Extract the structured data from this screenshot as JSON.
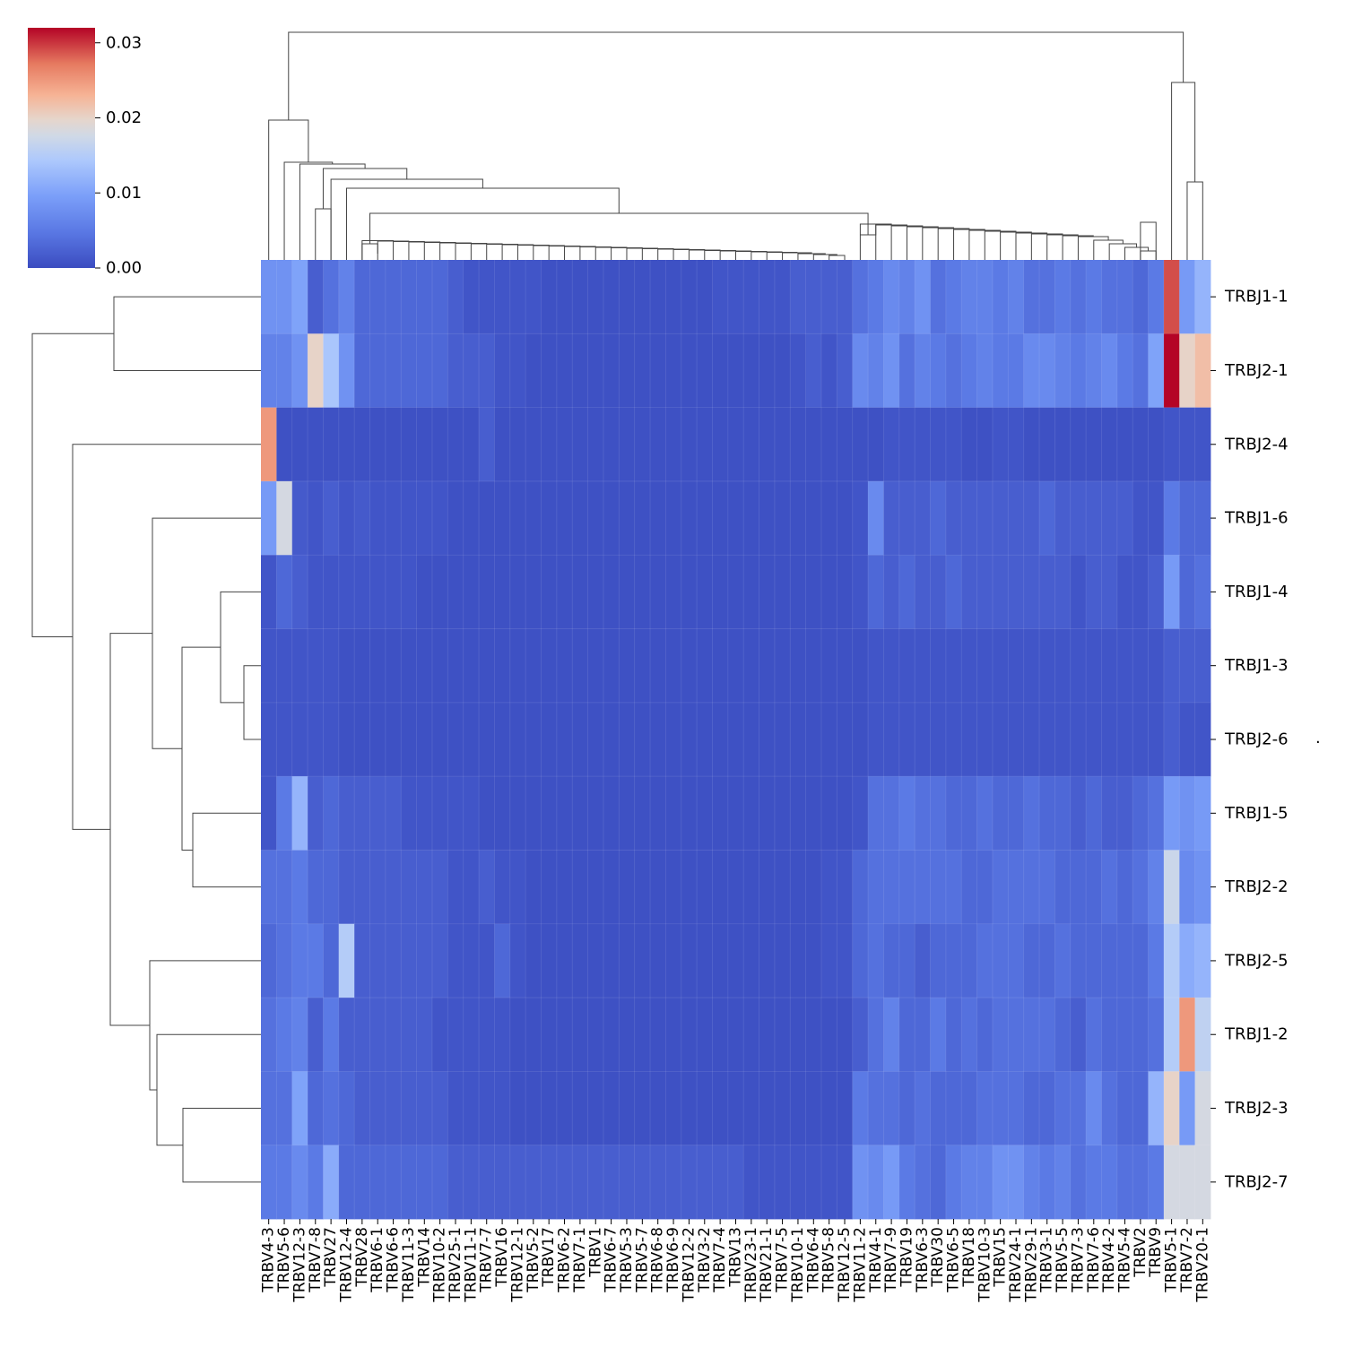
{
  "chart_data": {
    "type": "heatmap",
    "title": "",
    "xlabel": "",
    "ylabel": "",
    "colormap": "coolwarm",
    "colors": {
      "low": "#3b4cc0",
      "mid": "#dddddd",
      "high": "#b40426"
    },
    "colorbar": {
      "min": 0.0,
      "max": 0.032,
      "ticks": [
        0.0,
        0.01,
        0.02,
        0.03
      ],
      "tick_labels": [
        "0.00",
        "0.01",
        "0.02",
        "0.03"
      ]
    },
    "row_label_extra": ".",
    "columns": [
      "TRBV4-3",
      "TRBV5-6",
      "TRBV12-3",
      "TRBV7-8",
      "TRBV27",
      "TRBV12-4",
      "TRBV28",
      "TRBV6-1",
      "TRBV6-6",
      "TRBV11-3",
      "TRBV14",
      "TRBV10-2",
      "TRBV25-1",
      "TRBV11-1",
      "TRBV7-7",
      "TRBV16",
      "TRBV12-1",
      "TRBV5-2",
      "TRBV17",
      "TRBV6-2",
      "TRBV7-1",
      "TRBV1",
      "TRBV6-7",
      "TRBV5-3",
      "TRBV5-7",
      "TRBV6-8",
      "TRBV6-9",
      "TRBV12-2",
      "TRBV3-2",
      "TRBV7-4",
      "TRBV13",
      "TRBV23-1",
      "TRBV21-1",
      "TRBV7-5",
      "TRBV10-1",
      "TRBV6-4",
      "TRBV5-8",
      "TRBV12-5",
      "TRBV11-2",
      "TRBV4-1",
      "TRBV7-9",
      "TRBV19",
      "TRBV6-3",
      "TRBV30",
      "TRBV6-5",
      "TRBV18",
      "TRBV10-3",
      "TRBV15",
      "TRBV24-1",
      "TRBV29-1",
      "TRBV3-1",
      "TRBV5-5",
      "TRBV7-3",
      "TRBV7-6",
      "TRBV4-2",
      "TRBV5-4",
      "TRBV2",
      "TRBV9",
      "TRBV5-1",
      "TRBV7-2",
      "TRBV20-1"
    ],
    "rows": [
      "TRBJ1-1",
      "TRBJ2-1",
      "TRBJ2-4",
      "TRBJ1-6",
      "TRBJ1-4",
      "TRBJ1-3",
      "TRBJ2-6",
      "TRBJ1-5",
      "TRBJ2-2",
      "TRBJ2-5",
      "TRBJ1-2",
      "TRBJ2-3",
      "TRBJ2-7"
    ],
    "values": [
      [
        0.008,
        0.008,
        0.01,
        0.002,
        0.004,
        0.006,
        0.003,
        0.003,
        0.003,
        0.003,
        0.003,
        0.003,
        0.002,
        0.001,
        0.001,
        0.001,
        0.001,
        0.001,
        0.0005,
        0.0005,
        0.0005,
        0.0005,
        0.0005,
        0.0005,
        0.0005,
        0.0005,
        0.0005,
        0.0005,
        0.0005,
        0.001,
        0.001,
        0.001,
        0.001,
        0.001,
        0.002,
        0.002,
        0.002,
        0.002,
        0.004,
        0.005,
        0.007,
        0.006,
        0.008,
        0.004,
        0.005,
        0.006,
        0.006,
        0.005,
        0.006,
        0.004,
        0.004,
        0.005,
        0.004,
        0.005,
        0.004,
        0.004,
        0.003,
        0.005,
        0.029,
        0.009,
        0.012
      ],
      [
        0.006,
        0.006,
        0.008,
        0.02,
        0.014,
        0.008,
        0.003,
        0.003,
        0.003,
        0.003,
        0.003,
        0.003,
        0.002,
        0.002,
        0.002,
        0.001,
        0.001,
        0.0005,
        0.0005,
        0.0005,
        0.0005,
        0.0005,
        0.0005,
        0.0005,
        0.0005,
        0.0005,
        0.0005,
        0.0005,
        0.0005,
        0.0005,
        0.0005,
        0.0005,
        0.0005,
        0.0005,
        0.001,
        0.002,
        0.001,
        0.002,
        0.007,
        0.006,
        0.008,
        0.004,
        0.006,
        0.005,
        0.004,
        0.005,
        0.006,
        0.005,
        0.005,
        0.007,
        0.007,
        0.006,
        0.005,
        0.006,
        0.007,
        0.005,
        0.004,
        0.01,
        0.032,
        0.02,
        0.022
      ],
      [
        0.025,
        0.0005,
        0.0005,
        0.0005,
        0.0005,
        0.0005,
        0.0005,
        0.0005,
        0.0005,
        0.0005,
        0.0005,
        0.0005,
        0.0005,
        0.0005,
        0.002,
        0.0005,
        0.0005,
        0.0005,
        0.0005,
        0.0005,
        0.0005,
        0.0005,
        0.0005,
        0.0005,
        0.0005,
        0.0005,
        0.0005,
        0.0005,
        0.0005,
        0.0005,
        0.0005,
        0.0005,
        0.0005,
        0.0005,
        0.0005,
        0.0005,
        0.0005,
        0.0005,
        0.0005,
        0.0005,
        0.001,
        0.001,
        0.001,
        0.001,
        0.001,
        0.0005,
        0.0005,
        0.001,
        0.001,
        0.0005,
        0.0005,
        0.0005,
        0.0005,
        0.0005,
        0.0005,
        0.0005,
        0.0005,
        0.0005,
        0.001,
        0.001,
        0.001
      ],
      [
        0.009,
        0.018,
        0.0015,
        0.001,
        0.002,
        0.001,
        0.0015,
        0.001,
        0.001,
        0.001,
        0.001,
        0.001,
        0.0005,
        0.0005,
        0.0005,
        0.0005,
        0.0005,
        0.0005,
        0.0005,
        0.0005,
        0.0005,
        0.0005,
        0.0005,
        0.0005,
        0.0005,
        0.0005,
        0.0005,
        0.0005,
        0.0005,
        0.0005,
        0.0005,
        0.0005,
        0.0005,
        0.0005,
        0.0005,
        0.0005,
        0.0005,
        0.0005,
        0.001,
        0.007,
        0.002,
        0.002,
        0.002,
        0.003,
        0.002,
        0.002,
        0.002,
        0.002,
        0.002,
        0.002,
        0.003,
        0.002,
        0.002,
        0.002,
        0.002,
        0.002,
        0.001,
        0.001,
        0.005,
        0.003,
        0.003
      ],
      [
        0.001,
        0.003,
        0.002,
        0.001,
        0.001,
        0.001,
        0.001,
        0.001,
        0.001,
        0.001,
        0.0005,
        0.0005,
        0.0005,
        0.0005,
        0.0005,
        0.0005,
        0.0005,
        0.0005,
        0.0005,
        0.0005,
        0.0005,
        0.0005,
        0.0005,
        0.0005,
        0.0005,
        0.0005,
        0.0005,
        0.0005,
        0.0005,
        0.0005,
        0.0005,
        0.0005,
        0.0005,
        0.0005,
        0.0005,
        0.0005,
        0.0005,
        0.0005,
        0.001,
        0.003,
        0.002,
        0.003,
        0.002,
        0.002,
        0.003,
        0.002,
        0.002,
        0.002,
        0.002,
        0.002,
        0.002,
        0.002,
        0.001,
        0.002,
        0.002,
        0.001,
        0.001,
        0.002,
        0.009,
        0.003,
        0.004
      ],
      [
        0.001,
        0.001,
        0.001,
        0.001,
        0.001,
        0.0005,
        0.0005,
        0.0005,
        0.0005,
        0.0005,
        0.0005,
        0.0005,
        0.0005,
        0.0005,
        0.0005,
        0.0005,
        0.0005,
        0.0005,
        0.0005,
        0.0005,
        0.0005,
        0.0005,
        0.0005,
        0.0005,
        0.0005,
        0.0005,
        0.0005,
        0.0005,
        0.0005,
        0.0005,
        0.0005,
        0.0005,
        0.0005,
        0.0005,
        0.0005,
        0.0005,
        0.0005,
        0.0005,
        0.0005,
        0.001,
        0.001,
        0.001,
        0.001,
        0.001,
        0.001,
        0.001,
        0.001,
        0.001,
        0.001,
        0.001,
        0.001,
        0.001,
        0.001,
        0.001,
        0.001,
        0.001,
        0.001,
        0.001,
        0.002,
        0.002,
        0.002
      ],
      [
        0.001,
        0.001,
        0.001,
        0.001,
        0.001,
        0.0005,
        0.0005,
        0.0005,
        0.0005,
        0.0005,
        0.0005,
        0.0005,
        0.0005,
        0.0005,
        0.0005,
        0.0005,
        0.0005,
        0.0005,
        0.0005,
        0.0005,
        0.0005,
        0.0005,
        0.0005,
        0.0005,
        0.0005,
        0.0005,
        0.0005,
        0.0005,
        0.0005,
        0.0005,
        0.0005,
        0.0005,
        0.0005,
        0.0005,
        0.0005,
        0.0005,
        0.0005,
        0.0005,
        0.0005,
        0.001,
        0.001,
        0.001,
        0.001,
        0.001,
        0.001,
        0.001,
        0.001,
        0.001,
        0.001,
        0.001,
        0.001,
        0.001,
        0.001,
        0.001,
        0.001,
        0.001,
        0.001,
        0.001,
        0.002,
        0.001,
        0.001
      ],
      [
        0.001,
        0.005,
        0.012,
        0.002,
        0.003,
        0.002,
        0.002,
        0.002,
        0.002,
        0.001,
        0.001,
        0.001,
        0.001,
        0.001,
        0.0005,
        0.0005,
        0.0005,
        0.0005,
        0.0005,
        0.0005,
        0.0005,
        0.0005,
        0.0005,
        0.0005,
        0.0005,
        0.0005,
        0.0005,
        0.0005,
        0.0005,
        0.0005,
        0.0005,
        0.0005,
        0.0005,
        0.0005,
        0.0005,
        0.0005,
        0.0005,
        0.0005,
        0.001,
        0.004,
        0.004,
        0.005,
        0.004,
        0.004,
        0.003,
        0.003,
        0.004,
        0.003,
        0.003,
        0.004,
        0.003,
        0.003,
        0.002,
        0.003,
        0.002,
        0.002,
        0.003,
        0.004,
        0.009,
        0.008,
        0.009
      ],
      [
        0.004,
        0.004,
        0.005,
        0.003,
        0.003,
        0.002,
        0.002,
        0.002,
        0.002,
        0.002,
        0.002,
        0.002,
        0.001,
        0.001,
        0.002,
        0.001,
        0.001,
        0.0005,
        0.0005,
        0.0005,
        0.0005,
        0.0005,
        0.0005,
        0.0005,
        0.0005,
        0.0005,
        0.0005,
        0.0005,
        0.0005,
        0.0005,
        0.0005,
        0.0005,
        0.0005,
        0.0005,
        0.0005,
        0.0005,
        0.001,
        0.001,
        0.003,
        0.004,
        0.004,
        0.004,
        0.004,
        0.004,
        0.004,
        0.003,
        0.003,
        0.004,
        0.004,
        0.004,
        0.004,
        0.003,
        0.003,
        0.003,
        0.004,
        0.003,
        0.004,
        0.006,
        0.017,
        0.007,
        0.008
      ],
      [
        0.003,
        0.004,
        0.005,
        0.005,
        0.003,
        0.015,
        0.002,
        0.002,
        0.002,
        0.002,
        0.002,
        0.002,
        0.001,
        0.001,
        0.001,
        0.003,
        0.001,
        0.0005,
        0.0005,
        0.0005,
        0.0005,
        0.0005,
        0.0005,
        0.0005,
        0.0005,
        0.0005,
        0.0005,
        0.0005,
        0.0005,
        0.0005,
        0.0005,
        0.0005,
        0.0005,
        0.0005,
        0.0005,
        0.0005,
        0.001,
        0.001,
        0.003,
        0.004,
        0.003,
        0.003,
        0.002,
        0.003,
        0.003,
        0.003,
        0.004,
        0.004,
        0.004,
        0.003,
        0.003,
        0.004,
        0.003,
        0.003,
        0.003,
        0.003,
        0.003,
        0.005,
        0.015,
        0.011,
        0.012
      ],
      [
        0.004,
        0.005,
        0.006,
        0.002,
        0.005,
        0.002,
        0.002,
        0.002,
        0.002,
        0.002,
        0.002,
        0.001,
        0.001,
        0.001,
        0.001,
        0.001,
        0.0005,
        0.0005,
        0.0005,
        0.0005,
        0.0005,
        0.0005,
        0.0005,
        0.0005,
        0.0005,
        0.0005,
        0.0005,
        0.0005,
        0.0005,
        0.0005,
        0.0005,
        0.0005,
        0.0005,
        0.0005,
        0.0005,
        0.0005,
        0.0005,
        0.0005,
        0.002,
        0.004,
        0.006,
        0.003,
        0.003,
        0.005,
        0.003,
        0.004,
        0.003,
        0.004,
        0.004,
        0.004,
        0.004,
        0.003,
        0.002,
        0.004,
        0.003,
        0.003,
        0.003,
        0.004,
        0.015,
        0.025,
        0.016
      ],
      [
        0.004,
        0.004,
        0.01,
        0.003,
        0.004,
        0.003,
        0.002,
        0.002,
        0.002,
        0.002,
        0.002,
        0.002,
        0.001,
        0.001,
        0.001,
        0.001,
        0.0005,
        0.0005,
        0.0005,
        0.0005,
        0.0005,
        0.0005,
        0.0005,
        0.0005,
        0.0005,
        0.0005,
        0.0005,
        0.0005,
        0.0005,
        0.0005,
        0.0005,
        0.0005,
        0.0005,
        0.0005,
        0.0005,
        0.0005,
        0.0005,
        0.0005,
        0.005,
        0.004,
        0.004,
        0.003,
        0.004,
        0.003,
        0.003,
        0.003,
        0.004,
        0.004,
        0.004,
        0.003,
        0.003,
        0.004,
        0.004,
        0.007,
        0.004,
        0.003,
        0.003,
        0.012,
        0.02,
        0.009,
        0.018
      ],
      [
        0.005,
        0.005,
        0.007,
        0.005,
        0.011,
        0.003,
        0.003,
        0.003,
        0.003,
        0.003,
        0.003,
        0.003,
        0.002,
        0.002,
        0.002,
        0.002,
        0.002,
        0.002,
        0.002,
        0.002,
        0.002,
        0.002,
        0.002,
        0.002,
        0.002,
        0.002,
        0.002,
        0.002,
        0.002,
        0.002,
        0.002,
        0.001,
        0.001,
        0.001,
        0.001,
        0.001,
        0.001,
        0.001,
        0.008,
        0.007,
        0.009,
        0.005,
        0.004,
        0.003,
        0.005,
        0.006,
        0.006,
        0.008,
        0.008,
        0.006,
        0.005,
        0.006,
        0.004,
        0.005,
        0.005,
        0.004,
        0.004,
        0.005,
        0.018,
        0.018,
        0.018
      ]
    ]
  }
}
